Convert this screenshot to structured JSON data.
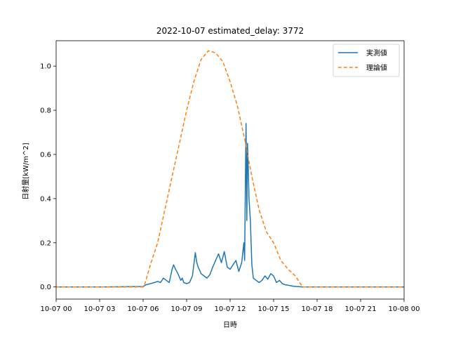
{
  "chart_data": {
    "type": "line",
    "title": "2022-10-07 estimated_delay: 3772",
    "xlabel": "日時",
    "ylabel": "日射量[kW/m^2]",
    "x_unit": "hours",
    "xlim": [
      0,
      24
    ],
    "ylim": [
      -0.055,
      1.115
    ],
    "x_ticks": [
      0,
      3,
      6,
      9,
      12,
      15,
      18,
      21,
      24
    ],
    "x_tick_labels": [
      "10-07 00",
      "10-07 03",
      "10-07 06",
      "10-07 09",
      "10-07 12",
      "10-07 15",
      "10-07 18",
      "10-07 21",
      "10-08 00"
    ],
    "y_ticks": [
      0.0,
      0.2,
      0.4,
      0.6,
      0.8,
      1.0
    ],
    "y_tick_labels": [
      "0.0",
      "0.2",
      "0.4",
      "0.6",
      "0.8",
      "1.0"
    ],
    "legend_position": "top-right",
    "grid": false,
    "series": [
      {
        "name": "実測値",
        "color": "#1f77b4",
        "style": "solid",
        "x": [
          0,
          3.0,
          6.0,
          6.2,
          6.5,
          6.8,
          7.0,
          7.2,
          7.4,
          7.6,
          7.8,
          8.0,
          8.1,
          8.2,
          8.4,
          8.6,
          8.7,
          8.8,
          9.0,
          9.2,
          9.4,
          9.6,
          9.7,
          9.8,
          10.0,
          10.2,
          10.4,
          10.6,
          10.8,
          11.0,
          11.2,
          11.4,
          11.6,
          11.8,
          12.0,
          12.2,
          12.4,
          12.6,
          12.8,
          12.95,
          13.0,
          13.05,
          13.1,
          13.15,
          13.2,
          13.25,
          13.3,
          13.4,
          13.5,
          13.6,
          13.8,
          14.0,
          14.2,
          14.4,
          14.6,
          14.8,
          15.0,
          15.2,
          15.4,
          15.6,
          15.8,
          16.0,
          16.2,
          16.4,
          16.6,
          16.8,
          17.0,
          18.0,
          21.0,
          24.0
        ],
        "values": [
          0.0,
          0.0,
          0.002,
          0.01,
          0.015,
          0.02,
          0.025,
          0.02,
          0.04,
          0.03,
          0.02,
          0.08,
          0.1,
          0.085,
          0.06,
          0.03,
          0.04,
          0.02,
          0.015,
          0.02,
          0.05,
          0.155,
          0.11,
          0.09,
          0.06,
          0.05,
          0.04,
          0.055,
          0.09,
          0.12,
          0.15,
          0.11,
          0.16,
          0.09,
          0.08,
          0.1,
          0.12,
          0.07,
          0.11,
          0.2,
          0.12,
          0.45,
          0.74,
          0.3,
          0.65,
          0.55,
          0.4,
          0.3,
          0.1,
          0.04,
          0.03,
          0.02,
          0.03,
          0.05,
          0.035,
          0.06,
          0.05,
          0.02,
          0.03,
          0.015,
          0.01,
          0.008,
          0.005,
          0.003,
          0.002,
          0.001,
          0.0,
          0.0,
          0.0,
          0.0
        ]
      },
      {
        "name": "理論値",
        "color": "#ff7f0e",
        "style": "dashed",
        "x": [
          0,
          3.0,
          6.0,
          6.1,
          6.5,
          7.0,
          7.5,
          8.0,
          8.5,
          9.0,
          9.5,
          10.0,
          10.5,
          11.0,
          11.5,
          12.0,
          12.5,
          13.0,
          13.5,
          14.0,
          14.5,
          15.0,
          15.5,
          16.0,
          16.5,
          17.0,
          17.2,
          18.0,
          21.0,
          24.0
        ],
        "values": [
          0.0,
          0.0,
          0.0,
          0.01,
          0.1,
          0.2,
          0.35,
          0.5,
          0.65,
          0.8,
          0.93,
          1.03,
          1.07,
          1.06,
          1.02,
          0.93,
          0.82,
          0.67,
          0.5,
          0.35,
          0.25,
          0.2,
          0.12,
          0.08,
          0.05,
          0.0,
          0.0,
          0.0,
          0.0,
          0.0
        ]
      }
    ]
  }
}
